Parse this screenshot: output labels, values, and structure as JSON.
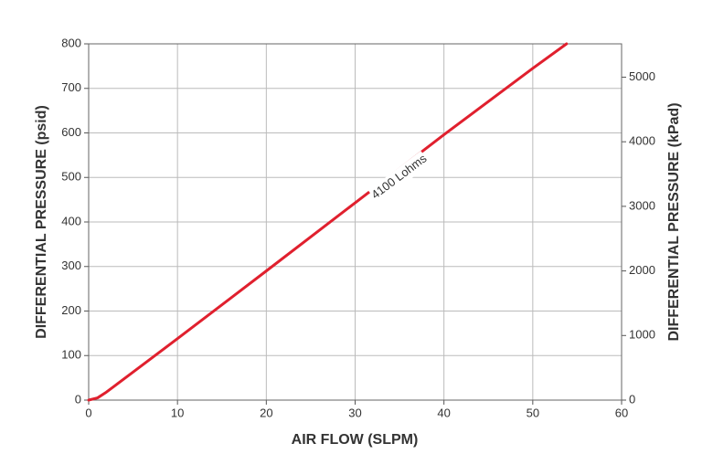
{
  "chart_data": {
    "type": "line",
    "x_label": "AIR FLOW (SLPM)",
    "y_label": "DIFFERENTIAL PRESSURE (psid)",
    "y2_label": "DIFFERENTIAL PRESSURE (kPad)",
    "x": [
      0,
      1,
      2,
      3,
      5,
      10,
      20,
      30,
      40,
      50,
      53.8
    ],
    "series": [
      {
        "name": "4100 Lohms",
        "color": "#e0202e",
        "values": [
          0,
          5,
          18,
          33,
          63,
          138,
          290,
          443,
          596,
          745,
          800
        ]
      }
    ],
    "xlim": [
      0,
      60
    ],
    "xticks": [
      0,
      10,
      20,
      30,
      40,
      50,
      60
    ],
    "ylim": [
      0,
      800
    ],
    "yticks": [
      0,
      100,
      200,
      300,
      400,
      500,
      600,
      700,
      800
    ],
    "y2lim": [
      0,
      5516
    ],
    "y2ticks": [
      0,
      1000,
      2000,
      3000,
      4000,
      5000
    ],
    "grid": true
  }
}
